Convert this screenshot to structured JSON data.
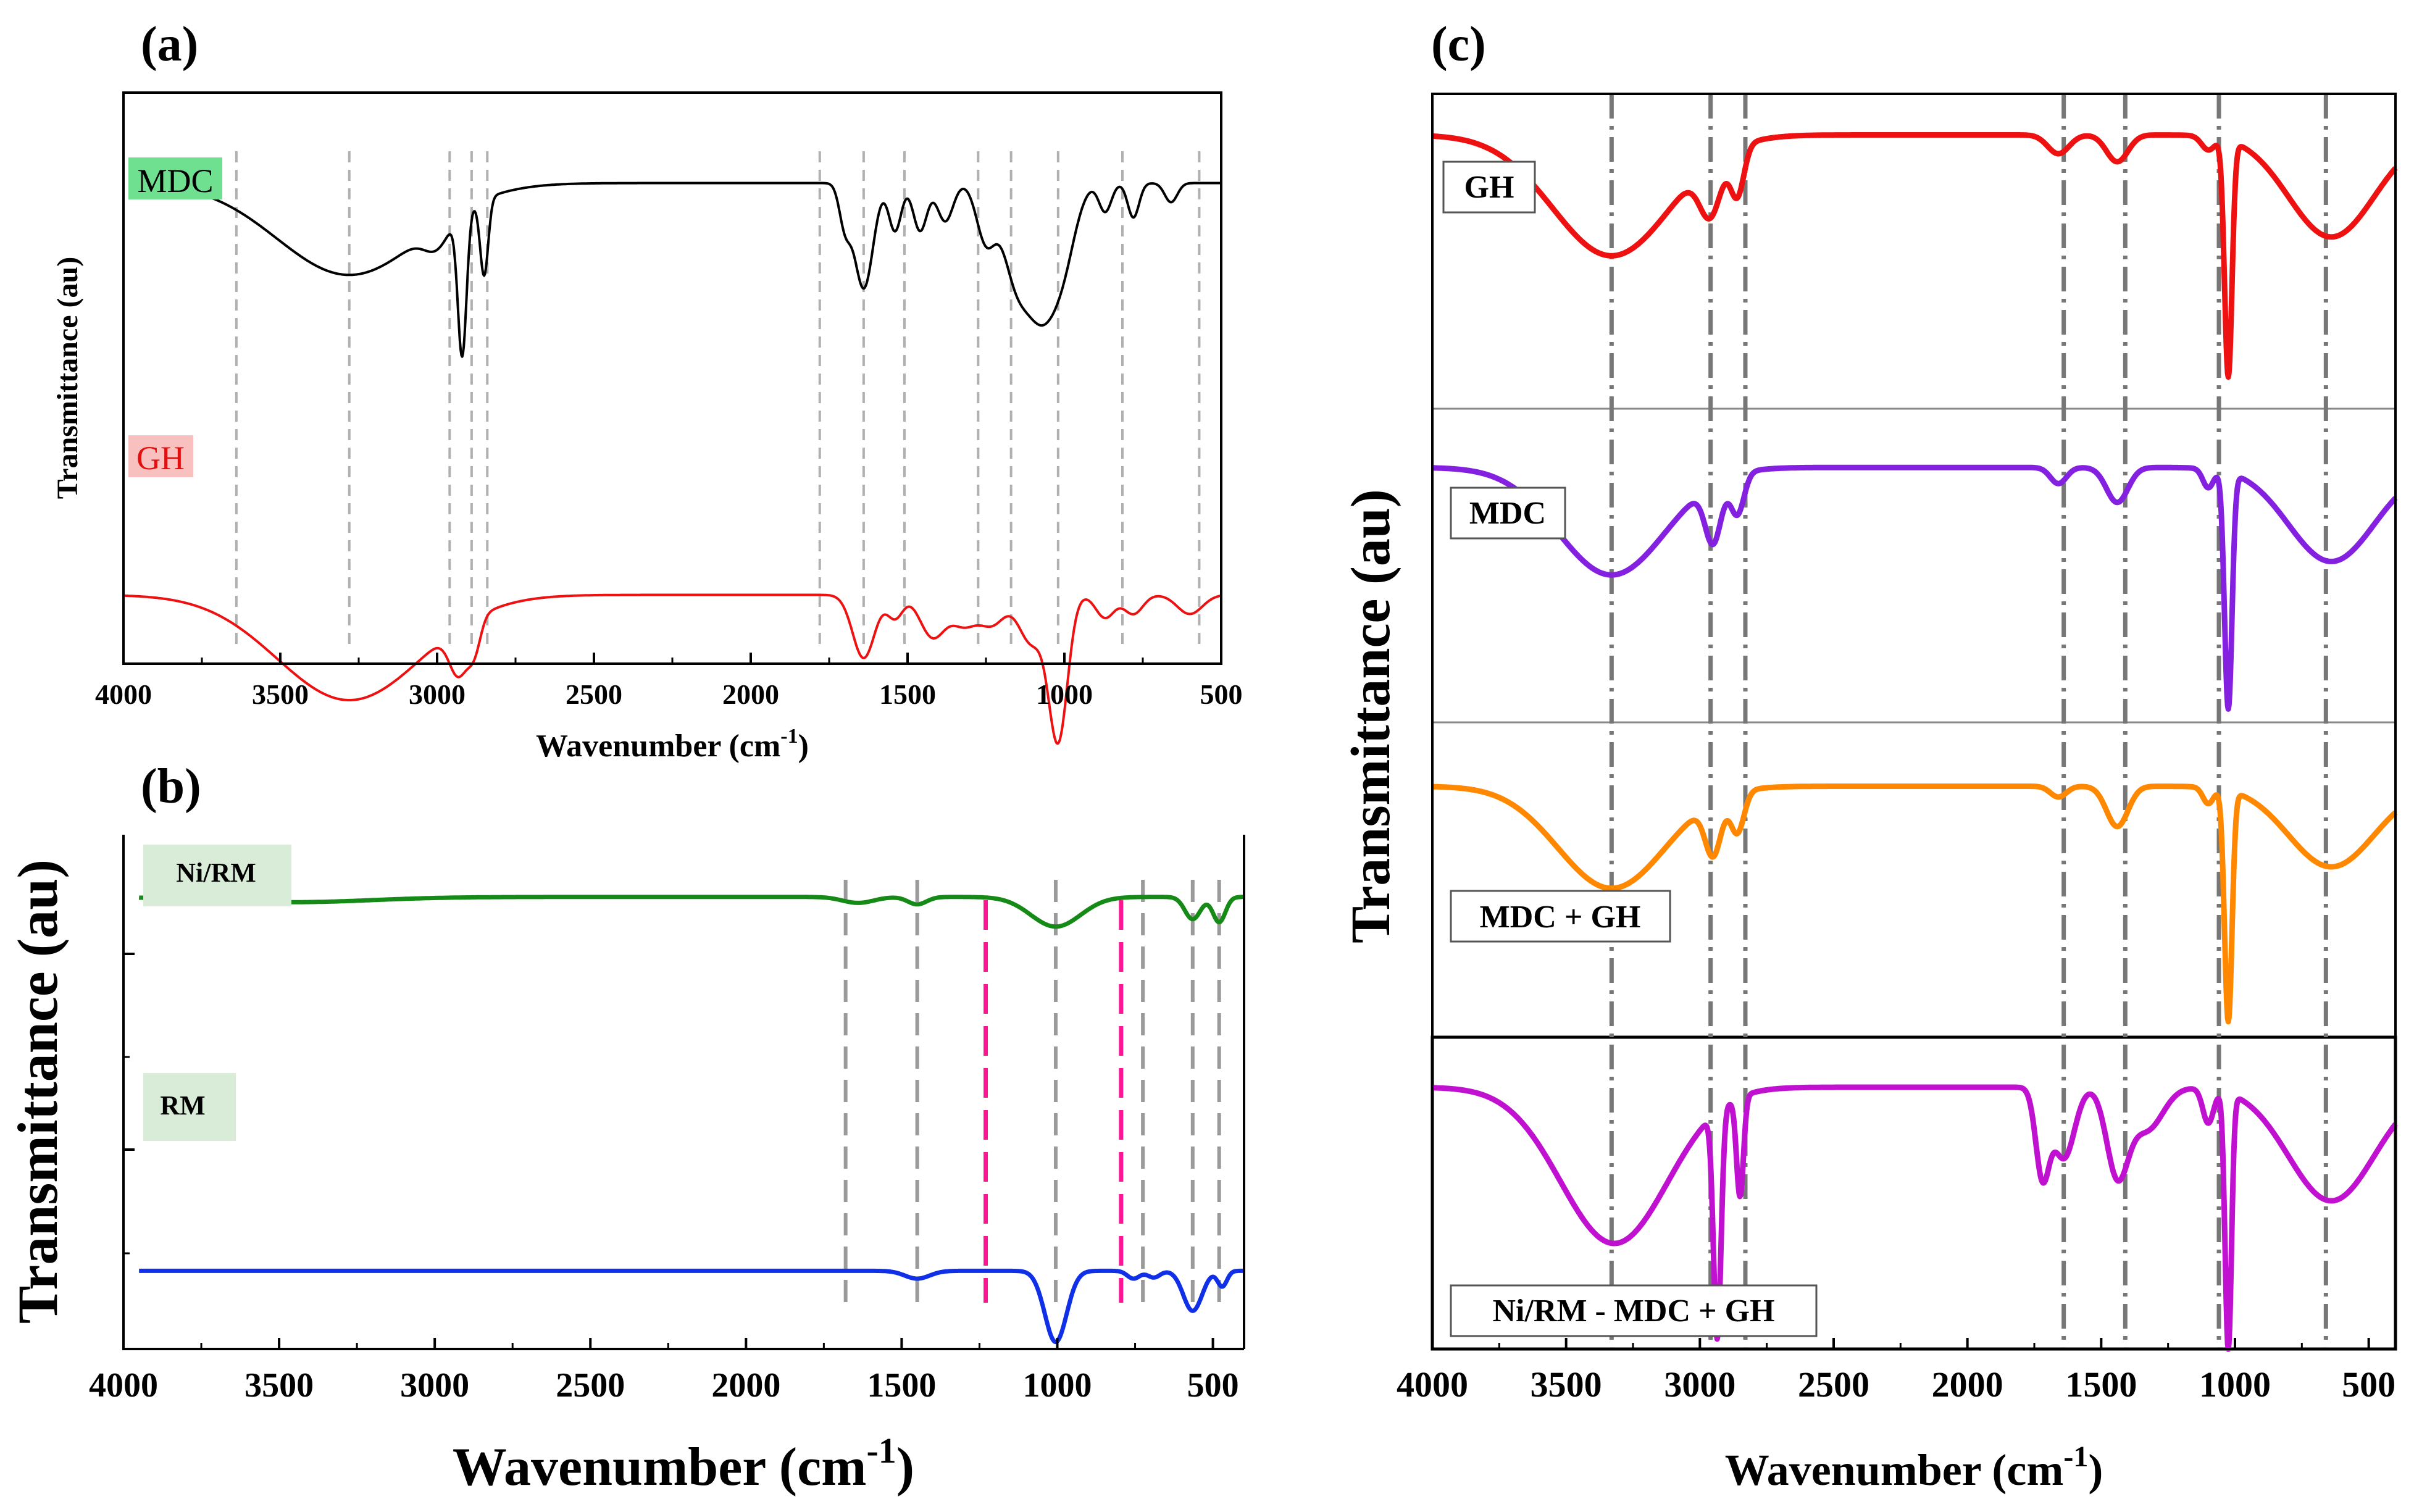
{
  "figure": {
    "panels": [
      {
        "id": "a",
        "label": "(a)"
      },
      {
        "id": "b",
        "label": "(b)"
      },
      {
        "id": "c",
        "label": "(c)"
      }
    ]
  },
  "colors": {
    "mdc_black": "#000000",
    "gh_red": "#ee1111",
    "ni_rm_green": "#168a16",
    "rm_blue": "#1030e8",
    "mdc_violet": "#8420e0",
    "mdc_gh_orange": "#ff8800",
    "ni_rm_mdc_gh_magenta": "#c010d0",
    "magenta_ref": "#ff1493",
    "a_label_green": "#6ee090",
    "a_label_red": "#f9c0c0",
    "b_label_bg": "#d8ecd8"
  },
  "chart_data": [
    {
      "panel": "a",
      "type": "line",
      "xlabel": "Wavenumber (cm",
      "xlabel_sup": "-1",
      "xlabel_end": ")",
      "ylabel": "Transmittance (au)",
      "xlim": [
        4000,
        500
      ],
      "xticks": [
        "4000",
        "3500",
        "3000",
        "2500",
        "2000",
        "1500",
        "1000",
        "500"
      ],
      "reference_lines": [
        3640,
        3280,
        2960,
        2890,
        2840,
        1780,
        1640,
        1510,
        1275,
        1170,
        1020,
        815,
        570
      ],
      "series": [
        {
          "name": "MDC",
          "color_key": "mdc_black",
          "base": 0.85,
          "end": 3960,
          "peaks": [
            [
              3280,
              0.48,
              230
            ],
            [
              2920,
              0.75,
              14
            ],
            [
              2850,
              0.4,
              13
            ],
            [
              3000,
              0.12,
              40
            ],
            [
              1700,
              0.2,
              18
            ],
            [
              1640,
              0.55,
              30
            ],
            [
              1540,
              0.25,
              20
            ],
            [
              1460,
              0.25,
              22
            ],
            [
              1380,
              0.2,
              25
            ],
            [
              1250,
              0.3,
              30
            ],
            [
              1160,
              0.4,
              40
            ],
            [
              1075,
              0.65,
              50
            ],
            [
              1000,
              0.3,
              40
            ],
            [
              870,
              0.15,
              20
            ],
            [
              780,
              0.18,
              18
            ],
            [
              660,
              0.1,
              20
            ]
          ]
        },
        {
          "name": "GH",
          "color_key": "gh_red",
          "base": 0.15,
          "end": 4000,
          "peaks": [
            [
              3280,
              0.55,
              230
            ],
            [
              2930,
              0.25,
              30
            ],
            [
              2880,
              0.15,
              20
            ],
            [
              1640,
              0.33,
              35
            ],
            [
              1540,
              0.12,
              25
            ],
            [
              1420,
              0.22,
              40
            ],
            [
              1320,
              0.15,
              40
            ],
            [
              1230,
              0.15,
              40
            ],
            [
              1105,
              0.25,
              40
            ],
            [
              1020,
              0.75,
              30
            ],
            [
              870,
              0.12,
              30
            ],
            [
              780,
              0.1,
              30
            ],
            [
              600,
              0.1,
              40
            ]
          ]
        }
      ]
    },
    {
      "panel": "b",
      "type": "line",
      "xlabel": "Wavenumber (cm",
      "xlabel_sup": "-1",
      "xlabel_end": ")",
      "ylabel": "Transmittance (au)",
      "xlim": [
        4000,
        400
      ],
      "xticks": [
        "4000",
        "3500",
        "3000",
        "2500",
        "2000",
        "1500",
        "1000",
        "500"
      ],
      "reference_lines_gray": [
        1680,
        1450,
        1005,
        725,
        565,
        480
      ],
      "reference_lines_magenta": [
        1230,
        795
      ],
      "series": [
        {
          "name": "Ni/RM",
          "color_key": "ni_rm_green",
          "base": 0.78,
          "end": 3950,
          "peaks": [
            [
              3450,
              0.035,
              250
            ],
            [
              1640,
              0.04,
              50
            ],
            [
              1450,
              0.05,
              30
            ],
            [
              1005,
              0.2,
              80
            ],
            [
              565,
              0.15,
              25
            ],
            [
              480,
              0.17,
              20
            ]
          ]
        },
        {
          "name": "RM",
          "color_key": "rm_blue",
          "base": 0.31,
          "end": 3950,
          "peaks": [
            [
              1450,
              0.035,
              40
            ],
            [
              1005,
              0.32,
              35
            ],
            [
              755,
              0.035,
              20
            ],
            [
              690,
              0.03,
              20
            ],
            [
              565,
              0.18,
              30
            ],
            [
              470,
              0.07,
              15
            ]
          ]
        }
      ]
    },
    {
      "panel": "c",
      "type": "line",
      "xlabel": "Wavenumber (cm",
      "xlabel_sup": "-1",
      "xlabel_end": ")",
      "ylabel": "Transmittance (au)",
      "xlim": [
        4000,
        400
      ],
      "xticks": [
        "4000",
        "3500",
        "3000",
        "2500",
        "2000",
        "1500",
        "1000",
        "500"
      ],
      "reference_lines": [
        3330,
        2960,
        2830,
        1640,
        1410,
        1060,
        660
      ],
      "series": [
        {
          "name": "GH",
          "color_key": "gh_red",
          "base": 0.9,
          "end": 4000,
          "peaks": [
            [
              3330,
              0.45,
              220
            ],
            [
              2960,
              0.2,
              40
            ],
            [
              2860,
              0.18,
              25
            ],
            [
              1660,
              0.07,
              40
            ],
            [
              1440,
              0.1,
              40
            ],
            [
              1100,
              0.05,
              25
            ],
            [
              1025,
              0.88,
              14
            ],
            [
              640,
              0.38,
              160
            ]
          ]
        },
        {
          "name": "MDC",
          "color_key": "mdc_violet",
          "base": 0.88,
          "end": 4000,
          "peaks": [
            [
              3330,
              0.4,
              200
            ],
            [
              2950,
              0.22,
              30
            ],
            [
              2860,
              0.15,
              25
            ],
            [
              1660,
              0.06,
              30
            ],
            [
              1440,
              0.13,
              40
            ],
            [
              1100,
              0.07,
              20
            ],
            [
              1025,
              0.88,
              14
            ],
            [
              640,
              0.35,
              160
            ]
          ]
        },
        {
          "name": "MDC + GH",
          "color_key": "mdc_gh_orange",
          "base": 0.9,
          "end": 4000,
          "peaks": [
            [
              3330,
              0.38,
              200
            ],
            [
              2950,
              0.2,
              30
            ],
            [
              2860,
              0.15,
              25
            ],
            [
              1660,
              0.04,
              30
            ],
            [
              1440,
              0.15,
              40
            ],
            [
              1100,
              0.06,
              20
            ],
            [
              1025,
              0.86,
              14
            ],
            [
              640,
              0.3,
              160
            ]
          ]
        },
        {
          "name": "Ni/RM - MDC + GH",
          "color_key": "ni_rm_mdc_gh_magenta",
          "base": 0.9,
          "end": 4000,
          "peaks": [
            [
              3320,
              0.55,
              200
            ],
            [
              2935,
              0.8,
              14
            ],
            [
              2850,
              0.35,
              13
            ],
            [
              1720,
              0.3,
              25
            ],
            [
              1640,
              0.25,
              40
            ],
            [
              1440,
              0.3,
              40
            ],
            [
              1330,
              0.15,
              60
            ],
            [
              1100,
              0.12,
              20
            ],
            [
              1025,
              0.9,
              12
            ],
            [
              640,
              0.4,
              160
            ]
          ]
        }
      ]
    }
  ]
}
